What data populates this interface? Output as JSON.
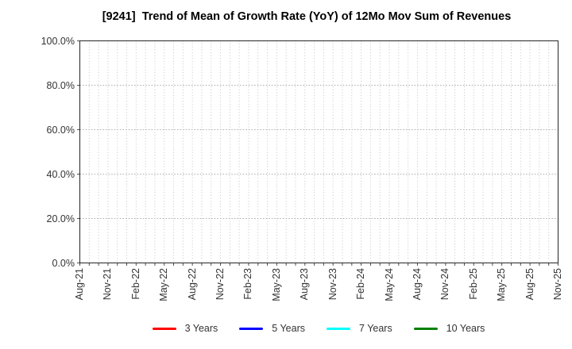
{
  "figure": {
    "background": "#ffffff"
  },
  "chart_data": {
    "type": "line",
    "title": "[9241]  Trend of Mean of Growth Rate (YoY) of 12Mo Mov Sum of Revenues",
    "x_axis": {
      "tick_labels": [
        "Aug-21",
        "Nov-21",
        "Feb-22",
        "May-22",
        "Aug-22",
        "Nov-22",
        "Feb-23",
        "May-23",
        "Aug-23",
        "Nov-23",
        "Feb-24",
        "May-24",
        "Aug-24",
        "Nov-24",
        "Feb-25",
        "May-25",
        "Aug-25",
        "Nov-25"
      ],
      "label_every_n_months": 3,
      "months_span": 51,
      "minor_grid": "monthly"
    },
    "y_axis": {
      "ylim": [
        0,
        100
      ],
      "ticks": [
        0,
        20,
        40,
        60,
        80,
        100
      ],
      "tick_labels": [
        "0.0%",
        "20.0%",
        "40.0%",
        "60.0%",
        "80.0%",
        "100.0%"
      ],
      "unit": "%"
    },
    "grid": {
      "on": true,
      "style": "dotted",
      "color": "#b3b3b3"
    },
    "legend": {
      "position": "bottom-center"
    },
    "series": [
      {
        "name": "3 Years",
        "color": "#ff0000",
        "values": []
      },
      {
        "name": "5 Years",
        "color": "#0000ff",
        "values": []
      },
      {
        "name": "7 Years",
        "color": "#00ffff",
        "values": []
      },
      {
        "name": "10 Years",
        "color": "#008000",
        "values": []
      }
    ],
    "no_data_visible": true
  }
}
